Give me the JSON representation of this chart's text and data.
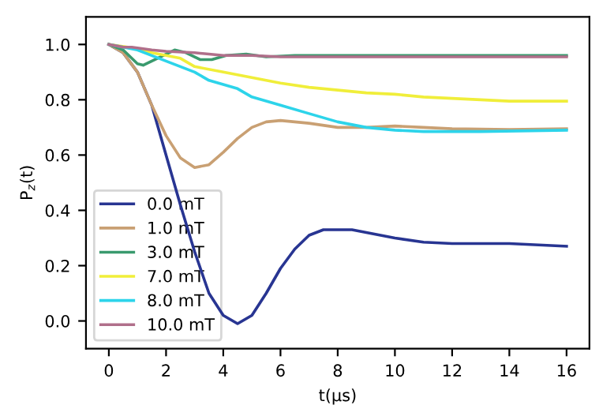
{
  "chart_data": {
    "type": "line",
    "xlabel": "t(μs)",
    "ylabel": "P$_{z}$(t)",
    "xlim": [
      -0.8,
      16.8
    ],
    "ylim": [
      -0.1,
      1.1
    ],
    "xticks": [
      0,
      2,
      4,
      6,
      8,
      10,
      12,
      14,
      16
    ],
    "yticks": [
      {
        "value": 0,
        "label": "0.0"
      },
      0.2,
      0.4,
      0.6,
      0.8,
      {
        "value": 1,
        "label": "1.0"
      }
    ],
    "legend": "bottom left",
    "grid": false,
    "series": [
      {
        "name": "0.0 mT",
        "color": "#283592",
        "x": [
          0,
          0.5,
          1,
          1.5,
          2,
          2.5,
          3,
          3.5,
          4,
          4.5,
          5,
          5.5,
          6,
          6.5,
          7,
          7.5,
          8.5,
          9.5,
          10,
          11,
          12,
          14,
          16
        ],
        "values": [
          1,
          0.97,
          0.9,
          0.78,
          0.6,
          0.42,
          0.25,
          0.1,
          0.02,
          -0.01,
          0.02,
          0.1,
          0.19,
          0.26,
          0.31,
          0.33,
          0.33,
          0.31,
          0.3,
          0.285,
          0.28,
          0.28,
          0.27
        ]
      },
      {
        "name": "1.0 mT",
        "color": "#c9a073",
        "x": [
          0,
          0.5,
          1,
          1.5,
          2,
          2.5,
          3,
          3.5,
          4,
          4.5,
          5,
          5.5,
          6,
          7,
          8,
          9,
          10,
          11,
          12,
          14,
          16
        ],
        "values": [
          1,
          0.97,
          0.9,
          0.78,
          0.67,
          0.59,
          0.555,
          0.565,
          0.61,
          0.66,
          0.7,
          0.72,
          0.725,
          0.715,
          0.7,
          0.7,
          0.705,
          0.7,
          0.695,
          0.692,
          0.695
        ]
      },
      {
        "name": "3.0 mT",
        "color": "#3a9a6e",
        "x": [
          0,
          0.5,
          1,
          1.2,
          1.7,
          2.3,
          2.7,
          3.2,
          3.6,
          4.1,
          4.8,
          5.5,
          6.5,
          16
        ],
        "values": [
          1,
          0.98,
          0.93,
          0.925,
          0.95,
          0.98,
          0.97,
          0.945,
          0.945,
          0.96,
          0.965,
          0.955,
          0.96,
          0.96
        ]
      },
      {
        "name": "7.0 mT",
        "color": "#f0ee3a",
        "x": [
          0,
          1,
          1.5,
          2.5,
          3,
          4,
          5,
          6,
          7,
          8,
          9,
          10,
          11,
          12,
          13,
          14,
          16
        ],
        "values": [
          1,
          0.985,
          0.97,
          0.95,
          0.92,
          0.9,
          0.88,
          0.86,
          0.845,
          0.835,
          0.825,
          0.82,
          0.81,
          0.805,
          0.8,
          0.795,
          0.795
        ]
      },
      {
        "name": "8.0 mT",
        "color": "#2dd4ea",
        "x": [
          0,
          0.5,
          1,
          1.5,
          2,
          2.5,
          3,
          3.5,
          4.5,
          5,
          6,
          7,
          8,
          9,
          10,
          11,
          12,
          13,
          16
        ],
        "values": [
          1,
          0.99,
          0.98,
          0.96,
          0.94,
          0.92,
          0.9,
          0.87,
          0.84,
          0.81,
          0.78,
          0.75,
          0.72,
          0.7,
          0.69,
          0.685,
          0.685,
          0.685,
          0.69
        ]
      },
      {
        "name": "10.0 mT",
        "color": "#b06f8a",
        "x": [
          0,
          0.5,
          0.8,
          1.5,
          2,
          3,
          3.5,
          4,
          5,
          6,
          16
        ],
        "values": [
          1,
          0.99,
          0.99,
          0.98,
          0.975,
          0.97,
          0.965,
          0.96,
          0.96,
          0.955,
          0.955
        ]
      }
    ]
  }
}
